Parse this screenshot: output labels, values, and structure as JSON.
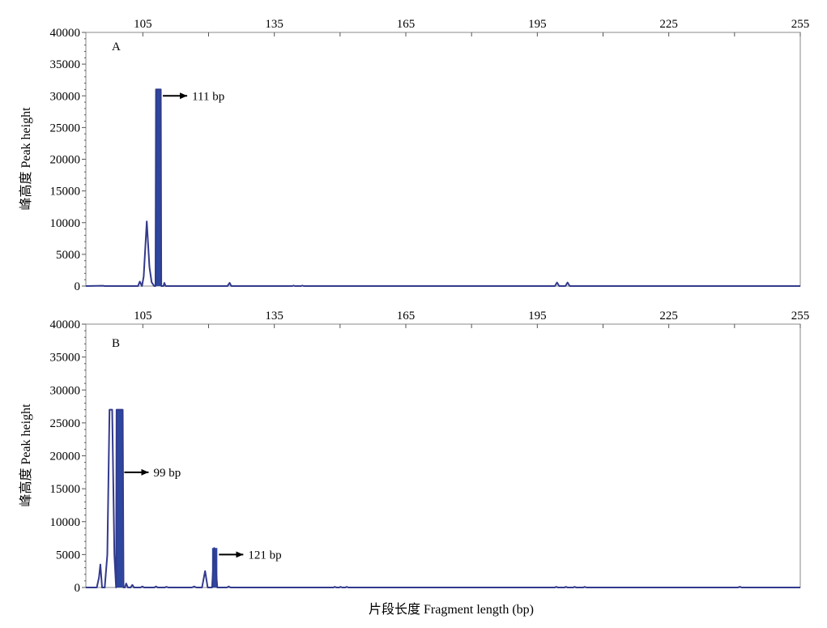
{
  "chart_data": [
    {
      "type": "line",
      "panel_label": "A",
      "ylabel": "峰高度 Peak height",
      "xlim": [
        92,
        255
      ],
      "ylim": [
        0,
        40000
      ],
      "x_ticks": [
        "105",
        "135",
        "165",
        "195",
        "225",
        "255"
      ],
      "y_ticks": [
        "0",
        "5000",
        "10000",
        "15000",
        "20000",
        "25000",
        "30000",
        "35000",
        "40000"
      ],
      "grid": false,
      "series": [
        {
          "values": [
            [
              92,
              0
            ],
            [
              95.9,
              50
            ],
            [
              96.3,
              0
            ],
            [
              103.9,
              0
            ],
            [
              104.3,
              700
            ],
            [
              104.8,
              0
            ],
            [
              105.2,
              1500
            ],
            [
              105.9,
              10200
            ],
            [
              106.5,
              3000
            ],
            [
              107,
              600
            ],
            [
              107.6,
              0
            ],
            [
              107.9,
              0
            ],
            [
              108,
              31000
            ],
            [
              109.1,
              31000
            ],
            [
              109.2,
              0
            ],
            [
              109.7,
              0
            ],
            [
              109.9,
              500
            ],
            [
              110.2,
              0
            ],
            [
              124.3,
              0
            ],
            [
              124.8,
              500
            ],
            [
              125.2,
              0
            ],
            [
              139.1,
              0
            ],
            [
              139.4,
              80
            ],
            [
              139.7,
              0
            ],
            [
              141.1,
              0
            ],
            [
              141.4,
              80
            ],
            [
              141.7,
              0
            ],
            [
              199,
              0
            ],
            [
              199.5,
              550
            ],
            [
              200,
              0
            ],
            [
              201.4,
              0
            ],
            [
              201.9,
              550
            ],
            [
              202.4,
              0
            ],
            [
              255,
              0
            ]
          ]
        }
      ],
      "filled_peaks": [
        {
          "x_start": 108,
          "x_end": 109.2,
          "height": 31000
        }
      ],
      "annotations": [
        {
          "text": "111 bp",
          "x": 109.2,
          "y": 30000
        }
      ]
    },
    {
      "type": "line",
      "panel_label": "B",
      "ylabel": "峰高度 Peak height",
      "xlabel": "片段长度 Fragment length (bp)",
      "xlim": [
        92,
        255
      ],
      "ylim": [
        0,
        40000
      ],
      "x_ticks": [
        "105",
        "135",
        "165",
        "195",
        "225",
        "255"
      ],
      "y_ticks": [
        "0",
        "5000",
        "10000",
        "15000",
        "20000",
        "25000",
        "30000",
        "35000",
        "40000"
      ],
      "grid": false,
      "series": [
        {
          "values": [
            [
              92,
              0
            ],
            [
              94.5,
              0
            ],
            [
              95,
              1500
            ],
            [
              95.3,
              3500
            ],
            [
              95.7,
              0
            ],
            [
              96.3,
              0
            ],
            [
              96.9,
              5000
            ],
            [
              97.4,
              27000
            ],
            [
              98,
              27000
            ],
            [
              98.5,
              5000
            ],
            [
              98.9,
              0
            ],
            [
              99,
              27000
            ],
            [
              100.4,
              27000
            ],
            [
              100.6,
              0
            ],
            [
              100.9,
              0
            ],
            [
              101.2,
              600
            ],
            [
              101.6,
              0
            ],
            [
              102.2,
              0
            ],
            [
              102.6,
              400
            ],
            [
              103,
              0
            ],
            [
              104.5,
              0
            ],
            [
              104.9,
              150
            ],
            [
              105.3,
              0
            ],
            [
              107.6,
              0
            ],
            [
              108,
              150
            ],
            [
              108.4,
              0
            ],
            [
              110,
              0
            ],
            [
              110.4,
              100
            ],
            [
              110.8,
              0
            ],
            [
              116.2,
              0
            ],
            [
              116.7,
              150
            ],
            [
              117.2,
              0
            ],
            [
              118.5,
              0
            ],
            [
              119.2,
              2500
            ],
            [
              119.8,
              0
            ],
            [
              120.8,
              0
            ],
            [
              121.3,
              6000
            ],
            [
              122,
              0
            ],
            [
              124.2,
              0
            ],
            [
              124.6,
              150
            ],
            [
              125,
              0
            ],
            [
              148.5,
              0
            ],
            [
              148.8,
              100
            ],
            [
              149.2,
              0
            ],
            [
              149.8,
              0
            ],
            [
              150.1,
              100
            ],
            [
              150.5,
              0
            ],
            [
              151.2,
              0
            ],
            [
              151.5,
              100
            ],
            [
              151.9,
              0
            ],
            [
              199,
              0
            ],
            [
              199.3,
              100
            ],
            [
              199.7,
              0
            ],
            [
              201.2,
              0
            ],
            [
              201.5,
              100
            ],
            [
              201.9,
              0
            ],
            [
              203.2,
              0
            ],
            [
              203.5,
              100
            ],
            [
              203.9,
              0
            ],
            [
              205.5,
              0
            ],
            [
              205.8,
              100
            ],
            [
              206.2,
              0
            ],
            [
              240.8,
              0
            ],
            [
              241.2,
              120
            ],
            [
              241.6,
              0
            ],
            [
              255,
              0
            ]
          ]
        }
      ],
      "filled_peaks": [
        {
          "x_start": 99,
          "x_end": 100.4,
          "height": 27000
        },
        {
          "x_start": 120.8,
          "x_end": 122,
          "height": 6000
        }
      ],
      "annotations": [
        {
          "text": "99 bp",
          "x": 100.4,
          "y": 17500
        },
        {
          "text": "121 bp",
          "x": 122,
          "y": 5000
        }
      ]
    }
  ]
}
